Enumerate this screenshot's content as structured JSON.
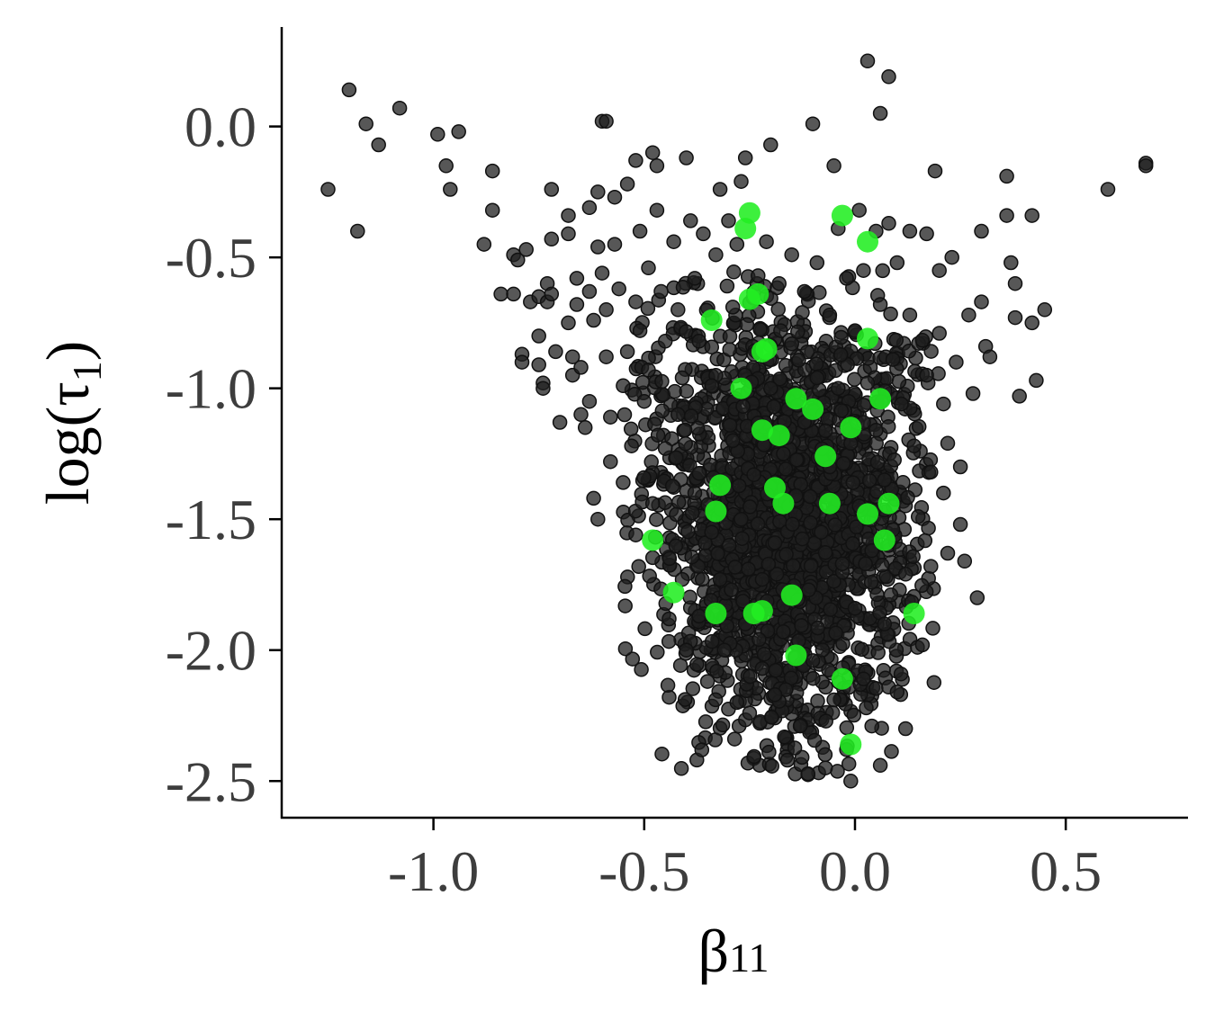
{
  "chart_data": {
    "type": "scatter",
    "title": "",
    "xlabel": {
      "base": "β",
      "subscript": "11"
    },
    "ylabel": {
      "base": "log(τ",
      "subscript": "1",
      "suffix": ")"
    },
    "xlim": [
      -1.36,
      0.79
    ],
    "ylim": [
      -2.64,
      0.38
    ],
    "xticks": [
      -1.0,
      -0.5,
      0.0,
      0.5
    ],
    "xtick_labels": [
      "-1.0",
      "-0.5",
      "0.0",
      "0.5"
    ],
    "yticks": [
      0.0,
      -0.5,
      -1.0,
      -1.5,
      -2.0,
      -2.5
    ],
    "ytick_labels": [
      "0.0",
      "-0.5",
      "-1.0",
      "-1.5",
      "-2.0",
      "-2.5"
    ],
    "grid": false,
    "colors": {
      "background_points": "#1f1f1f",
      "highlight_points": "#22ee22"
    },
    "series": [
      {
        "role": "background",
        "points": [
          [
            -1.25,
            -0.24
          ],
          [
            -1.2,
            0.14
          ],
          [
            -1.18,
            -0.4
          ],
          [
            -1.16,
            0.01
          ],
          [
            -1.13,
            -0.07
          ],
          [
            -1.08,
            0.07
          ],
          [
            -0.99,
            -0.03
          ],
          [
            -0.97,
            -0.15
          ],
          [
            -0.96,
            -0.24
          ],
          [
            -0.94,
            -0.02
          ],
          [
            -0.88,
            -0.45
          ],
          [
            -0.86,
            -0.17
          ],
          [
            -0.86,
            -0.32
          ],
          [
            -0.84,
            -0.64
          ],
          [
            -0.81,
            -0.49
          ],
          [
            -0.81,
            -0.64
          ],
          [
            -0.8,
            -0.51
          ],
          [
            -0.79,
            -0.87
          ],
          [
            -0.79,
            -0.9
          ],
          [
            -0.78,
            -0.47
          ],
          [
            -0.77,
            -0.67
          ],
          [
            -0.75,
            -0.65
          ],
          [
            -0.75,
            -0.8
          ],
          [
            -0.75,
            -0.91
          ],
          [
            -0.74,
            -0.98
          ],
          [
            -0.74,
            -1.0
          ],
          [
            -0.73,
            -0.6
          ],
          [
            -0.73,
            -0.67
          ],
          [
            -0.72,
            -0.24
          ],
          [
            -0.72,
            -0.43
          ],
          [
            -0.72,
            -0.64
          ],
          [
            -0.71,
            -0.86
          ],
          [
            -0.7,
            -1.13
          ],
          [
            -0.68,
            -0.34
          ],
          [
            -0.68,
            -0.41
          ],
          [
            -0.68,
            -0.75
          ],
          [
            -0.67,
            -0.88
          ],
          [
            -0.67,
            -0.95
          ],
          [
            -0.66,
            -0.58
          ],
          [
            -0.66,
            -0.68
          ],
          [
            -0.65,
            -0.92
          ],
          [
            -0.65,
            -1.1
          ],
          [
            -0.64,
            -1.15
          ],
          [
            -0.63,
            -0.31
          ],
          [
            -0.63,
            -0.63
          ],
          [
            -0.63,
            -1.05
          ],
          [
            -0.62,
            -0.74
          ],
          [
            -0.62,
            -1.42
          ],
          [
            -0.61,
            -0.25
          ],
          [
            -0.61,
            -0.46
          ],
          [
            -0.61,
            -1.5
          ],
          [
            -0.6,
            0.02
          ],
          [
            -0.6,
            -0.56
          ],
          [
            -0.59,
            0.02
          ],
          [
            -0.59,
            -0.7
          ],
          [
            -0.59,
            -0.88
          ],
          [
            -0.58,
            -1.11
          ],
          [
            -0.58,
            -1.28
          ],
          [
            -0.57,
            -0.45
          ],
          [
            -0.57,
            -0.27
          ],
          [
            -0.56,
            -0.62
          ],
          [
            -0.55,
            -0.99
          ],
          [
            -0.55,
            -1.36
          ],
          [
            -0.54,
            -0.22
          ],
          [
            -0.54,
            -0.86
          ],
          [
            -0.53,
            -1.22
          ],
          [
            -0.52,
            -0.13
          ],
          [
            -0.52,
            -0.67
          ],
          [
            -0.52,
            -1.56
          ],
          [
            -0.51,
            -0.4
          ],
          [
            -0.51,
            -0.78
          ],
          [
            -0.5,
            -1.05
          ],
          [
            -0.49,
            -0.54
          ],
          [
            -0.49,
            -0.93
          ],
          [
            -0.48,
            -0.1
          ],
          [
            -0.48,
            -1.44
          ],
          [
            -0.47,
            -0.32
          ],
          [
            -0.47,
            -0.15
          ],
          [
            -0.46,
            -0.63
          ],
          [
            -0.45,
            -0.82
          ],
          [
            -0.45,
            -1.23
          ],
          [
            -0.44,
            -1.65
          ],
          [
            -0.43,
            -0.44
          ],
          [
            -0.42,
            -0.7
          ],
          [
            -0.42,
            -1.1
          ],
          [
            -0.41,
            -0.96
          ],
          [
            -0.41,
            -1.73
          ],
          [
            -0.4,
            -0.12
          ],
          [
            -0.4,
            -2.0
          ],
          [
            -0.39,
            -0.36
          ],
          [
            -0.38,
            -0.58
          ],
          [
            -0.38,
            -1.4
          ],
          [
            -0.37,
            -0.82
          ],
          [
            -0.37,
            -1.87
          ],
          [
            -0.36,
            -0.41
          ],
          [
            -0.35,
            -2.12
          ],
          [
            -0.34,
            -0.99
          ],
          [
            -0.34,
            -1.55
          ],
          [
            -0.33,
            -0.49
          ],
          [
            -0.32,
            -0.24
          ],
          [
            -0.32,
            -1.73
          ],
          [
            -0.31,
            -2.0
          ],
          [
            -0.3,
            -0.36
          ],
          [
            -0.29,
            -0.69
          ],
          [
            -0.29,
            -1.2
          ],
          [
            -0.28,
            -0.45
          ],
          [
            -0.28,
            -2.2
          ],
          [
            -0.27,
            -0.21
          ],
          [
            -0.27,
            -1.5
          ],
          [
            -0.26,
            -0.12
          ],
          [
            -0.26,
            -1.9
          ],
          [
            -0.25,
            -2.24
          ],
          [
            -0.24,
            -0.87
          ],
          [
            -0.24,
            -1.33
          ],
          [
            -0.23,
            -0.57
          ],
          [
            -0.22,
            -1.73
          ],
          [
            -0.22,
            -2.07
          ],
          [
            -0.21,
            -0.44
          ],
          [
            -0.2,
            -0.07
          ],
          [
            -0.2,
            -1.0
          ],
          [
            -0.19,
            -1.59
          ],
          [
            -0.19,
            -2.17
          ],
          [
            -0.18,
            -0.6
          ],
          [
            -0.17,
            -1.25
          ],
          [
            -0.17,
            -1.93
          ],
          [
            -0.16,
            -2.42
          ],
          [
            -0.15,
            -0.49
          ],
          [
            -0.15,
            -0.83
          ],
          [
            -0.14,
            -1.41
          ],
          [
            -0.13,
            -2.29
          ],
          [
            -0.12,
            -0.63
          ],
          [
            -0.12,
            -1.13
          ],
          [
            -0.11,
            -1.77
          ],
          [
            -0.1,
            0.01
          ],
          [
            -0.1,
            -2.04
          ],
          [
            -0.09,
            -0.52
          ],
          [
            -0.09,
            -0.96
          ],
          [
            -0.08,
            -1.55
          ],
          [
            -0.07,
            -2.45
          ],
          [
            -0.06,
            -0.72
          ],
          [
            -0.06,
            -1.3
          ],
          [
            -0.05,
            -2.19
          ],
          [
            -0.05,
            -0.15
          ],
          [
            -0.04,
            -0.39
          ],
          [
            -0.04,
            -1.0
          ],
          [
            -0.03,
            -1.67
          ],
          [
            -0.02,
            -2.38
          ],
          [
            -0.02,
            -0.58
          ],
          [
            -0.01,
            -1.21
          ],
          [
            -0.01,
            -2.5
          ],
          [
            0.0,
            -0.78
          ],
          [
            0.0,
            -1.84
          ],
          [
            0.01,
            -0.32
          ],
          [
            0.01,
            -1.45
          ],
          [
            0.02,
            -2.11
          ],
          [
            0.02,
            -0.55
          ],
          [
            0.03,
            0.25
          ],
          [
            0.03,
            -0.98
          ],
          [
            0.04,
            -1.62
          ],
          [
            0.04,
            -2.29
          ],
          [
            0.05,
            -0.4
          ],
          [
            0.05,
            -1.16
          ],
          [
            0.06,
            0.05
          ],
          [
            0.06,
            -0.68
          ],
          [
            0.06,
            -2.44
          ],
          [
            0.07,
            -1.35
          ],
          [
            0.07,
            -1.9
          ],
          [
            0.08,
            0.19
          ],
          [
            0.08,
            -0.37
          ],
          [
            0.09,
            -0.89
          ],
          [
            0.09,
            -1.54
          ],
          [
            0.1,
            -2.16
          ],
          [
            0.1,
            -0.52
          ],
          [
            0.11,
            -1.06
          ],
          [
            0.12,
            -1.71
          ],
          [
            0.12,
            -2.3
          ],
          [
            0.13,
            -0.4
          ],
          [
            0.13,
            -0.72
          ],
          [
            0.14,
            -1.22
          ],
          [
            0.15,
            -1.49
          ],
          [
            0.16,
            -1.98
          ],
          [
            0.17,
            -0.41
          ],
          [
            0.17,
            -0.95
          ],
          [
            0.18,
            -1.32
          ],
          [
            0.18,
            -1.68
          ],
          [
            0.19,
            -0.17
          ],
          [
            0.2,
            -0.55
          ],
          [
            0.2,
            -0.79
          ],
          [
            0.21,
            -1.06
          ],
          [
            0.21,
            -1.4
          ],
          [
            0.22,
            -1.21
          ],
          [
            0.22,
            -1.63
          ],
          [
            0.23,
            -0.5
          ],
          [
            0.24,
            -0.9
          ],
          [
            0.25,
            -1.3
          ],
          [
            0.25,
            -1.52
          ],
          [
            0.26,
            -1.66
          ],
          [
            0.27,
            -0.72
          ],
          [
            0.28,
            -1.02
          ],
          [
            0.29,
            -1.8
          ],
          [
            0.3,
            -0.4
          ],
          [
            0.3,
            -0.67
          ],
          [
            0.31,
            -0.84
          ],
          [
            0.32,
            -0.88
          ],
          [
            0.36,
            -0.19
          ],
          [
            0.36,
            -0.34
          ],
          [
            0.37,
            -0.52
          ],
          [
            0.38,
            -0.6
          ],
          [
            0.38,
            -0.73
          ],
          [
            0.39,
            -1.03
          ],
          [
            0.42,
            -0.34
          ],
          [
            0.42,
            -0.75
          ],
          [
            0.43,
            -0.97
          ],
          [
            0.45,
            -0.7
          ],
          [
            0.6,
            -0.24
          ],
          [
            0.69,
            -0.14
          ],
          [
            0.69,
            -0.15
          ]
        ]
      },
      {
        "role": "highlight",
        "points": [
          [
            -0.25,
            -0.33
          ],
          [
            -0.26,
            -0.39
          ],
          [
            -0.25,
            -0.66
          ],
          [
            -0.23,
            -0.64
          ],
          [
            -0.34,
            -0.74
          ],
          [
            -0.21,
            -0.85
          ],
          [
            -0.22,
            -0.86
          ],
          [
            -0.27,
            -1.0
          ],
          [
            -0.14,
            -1.04
          ],
          [
            -0.1,
            -1.08
          ],
          [
            -0.22,
            -1.16
          ],
          [
            -0.18,
            -1.18
          ],
          [
            -0.07,
            -1.26
          ],
          [
            -0.01,
            -1.15
          ],
          [
            0.06,
            -1.04
          ],
          [
            -0.32,
            -1.37
          ],
          [
            -0.19,
            -1.38
          ],
          [
            -0.17,
            -1.44
          ],
          [
            -0.33,
            -1.47
          ],
          [
            -0.06,
            -1.44
          ],
          [
            0.03,
            -1.48
          ],
          [
            0.08,
            -1.44
          ],
          [
            -0.48,
            -1.58
          ],
          [
            0.07,
            -1.58
          ],
          [
            -0.43,
            -1.78
          ],
          [
            -0.33,
            -1.86
          ],
          [
            -0.24,
            -1.86
          ],
          [
            -0.22,
            -1.85
          ],
          [
            -0.15,
            -1.79
          ],
          [
            -0.14,
            -2.02
          ],
          [
            -0.03,
            -2.11
          ],
          [
            -0.01,
            -2.36
          ],
          [
            0.14,
            -1.86
          ],
          [
            -0.03,
            -0.34
          ],
          [
            0.03,
            -0.44
          ],
          [
            0.03,
            -0.81
          ]
        ]
      }
    ]
  }
}
